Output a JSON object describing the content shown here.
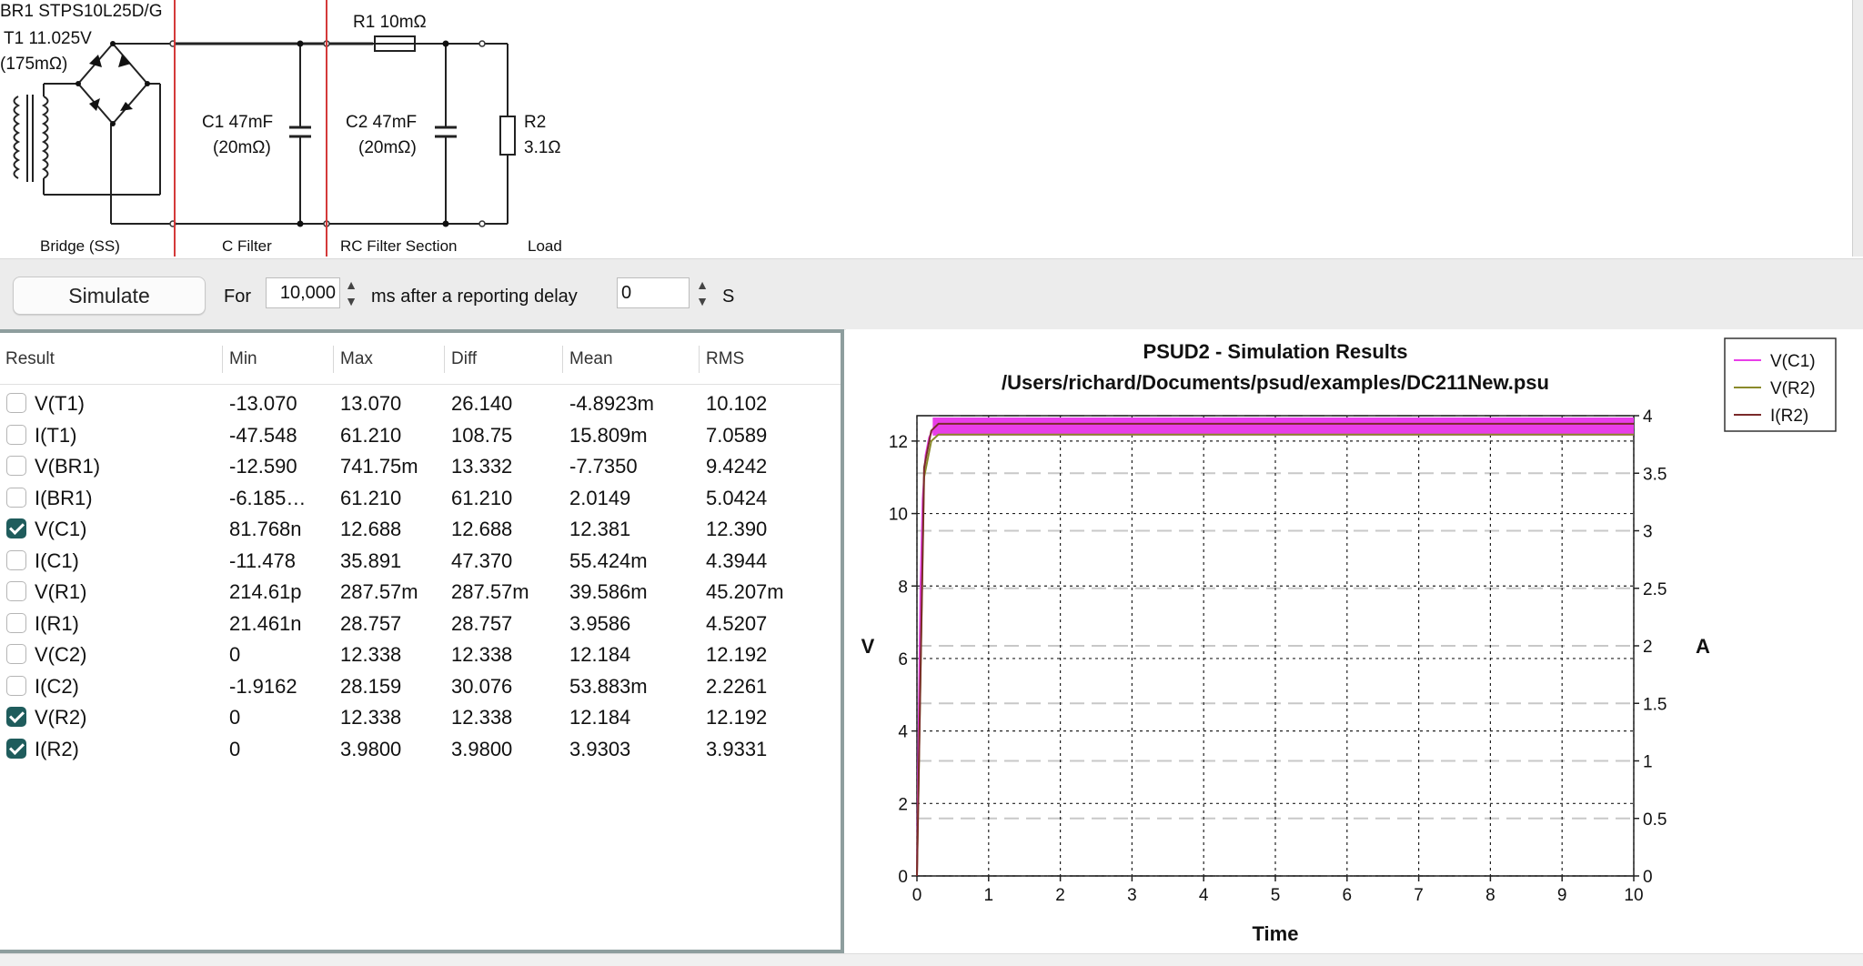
{
  "schematic": {
    "bridge_part": "BR1 STPS10L25D/G",
    "transformer_voltage": "T1 11.025V",
    "transformer_resistance": "(175mΩ)",
    "r1_label": "R1 10mΩ",
    "c1_value": "C1 47mF",
    "c1_esr": "(20mΩ)",
    "c2_value": "C2 47mF",
    "c2_esr": "(20mΩ)",
    "r2_name": "R2",
    "r2_value": "3.1Ω",
    "sections": [
      "Bridge (SS)",
      "C Filter",
      "RC Filter Section",
      "Load"
    ]
  },
  "toolbar": {
    "simulate_label": "Simulate",
    "for_label": "For",
    "duration_value": "10,000",
    "ms_label": "ms after a reporting delay",
    "delay_value": "0",
    "s_label": "S"
  },
  "results": {
    "columns": [
      "Result",
      "Min",
      "Max",
      "Diff",
      "Mean",
      "RMS"
    ],
    "rows": [
      {
        "name": "V(T1)",
        "checked": false,
        "min": "-13.070",
        "max": "13.070",
        "diff": "26.140",
        "mean": "-4.8923m",
        "rms": "10.102"
      },
      {
        "name": "I(T1)",
        "checked": false,
        "min": "-47.548",
        "max": "61.210",
        "diff": "108.75",
        "mean": "15.809m",
        "rms": "7.0589"
      },
      {
        "name": "V(BR1)",
        "checked": false,
        "min": "-12.590",
        "max": "741.75m",
        "diff": "13.332",
        "mean": "-7.7350",
        "rms": "9.4242"
      },
      {
        "name": "I(BR1)",
        "checked": false,
        "min": "-6.185…",
        "max": "61.210",
        "diff": "61.210",
        "mean": "2.0149",
        "rms": "5.0424"
      },
      {
        "name": "V(C1)",
        "checked": true,
        "min": "81.768n",
        "max": "12.688",
        "diff": "12.688",
        "mean": "12.381",
        "rms": "12.390"
      },
      {
        "name": "I(C1)",
        "checked": false,
        "min": "-11.478",
        "max": "35.891",
        "diff": "47.370",
        "mean": "55.424m",
        "rms": "4.3944"
      },
      {
        "name": "V(R1)",
        "checked": false,
        "min": "214.61p",
        "max": "287.57m",
        "diff": "287.57m",
        "mean": "39.586m",
        "rms": "45.207m"
      },
      {
        "name": "I(R1)",
        "checked": false,
        "min": "21.461n",
        "max": "28.757",
        "diff": "28.757",
        "mean": "3.9586",
        "rms": "4.5207"
      },
      {
        "name": "V(C2)",
        "checked": false,
        "min": "0",
        "max": "12.338",
        "diff": "12.338",
        "mean": "12.184",
        "rms": "12.192"
      },
      {
        "name": "I(C2)",
        "checked": false,
        "min": "-1.9162",
        "max": "28.159",
        "diff": "30.076",
        "mean": "53.883m",
        "rms": "2.2261"
      },
      {
        "name": "V(R2)",
        "checked": true,
        "min": "0",
        "max": "12.338",
        "diff": "12.338",
        "mean": "12.184",
        "rms": "12.192"
      },
      {
        "name": "I(R2)",
        "checked": true,
        "min": "0",
        "max": "3.9800",
        "diff": "3.9800",
        "mean": "3.9303",
        "rms": "3.9331"
      }
    ]
  },
  "chart_data": {
    "type": "line",
    "title": "PSUD2 - Simulation Results",
    "subtitle": "/Users/richard/Documents/psud/examples/DC211New.psu",
    "xlabel": "Time",
    "ylabel": "V",
    "y2label": "A",
    "xlim": [
      0,
      10
    ],
    "ylim": [
      0,
      12.7
    ],
    "y2lim": [
      0,
      4
    ],
    "xticks": [
      0,
      1,
      2,
      3,
      4,
      5,
      6,
      7,
      8,
      9,
      10
    ],
    "yticks": [
      0,
      2,
      4,
      6,
      8,
      10,
      12
    ],
    "y2ticks": [
      "0",
      "0.5",
      "1",
      "1.5",
      "2",
      "2.5",
      "3",
      "3.5",
      "4"
    ],
    "grid": true,
    "legend_position": "top-right",
    "series": [
      {
        "name": "V(C1)",
        "axis": "left",
        "color": "#e83ee8",
        "x": [
          0,
          0.02,
          0.05,
          0.08,
          0.12,
          0.17,
          0.22,
          0.3,
          1,
          2,
          3,
          4,
          5,
          6,
          7,
          8,
          9,
          10
        ],
        "y": [
          0,
          3.5,
          8.0,
          10.4,
          11.6,
          12.1,
          12.3,
          12.4,
          12.4,
          12.4,
          12.4,
          12.4,
          12.4,
          12.4,
          12.4,
          12.4,
          12.4,
          12.4
        ],
        "ripple": [
          12.15,
          12.65
        ]
      },
      {
        "name": "V(R2)",
        "axis": "left",
        "color": "#8a8a2a",
        "x": [
          0,
          0.1,
          0.2,
          0.3,
          10
        ],
        "y": [
          0,
          11.0,
          12.0,
          12.18,
          12.18
        ]
      },
      {
        "name": "I(R2)",
        "axis": "right",
        "color": "#7a2a2a",
        "x": [
          0,
          0.1,
          0.2,
          0.3,
          10
        ],
        "y": [
          0,
          3.55,
          3.87,
          3.93,
          3.93
        ]
      }
    ]
  },
  "colors": {
    "accent": "#1f5c5c",
    "section_divider": "#d43a3a",
    "panel_border": "#8e9e9e"
  },
  "icons": {
    "stepper": "stepper-icon",
    "checkbox": "checkbox-icon"
  }
}
